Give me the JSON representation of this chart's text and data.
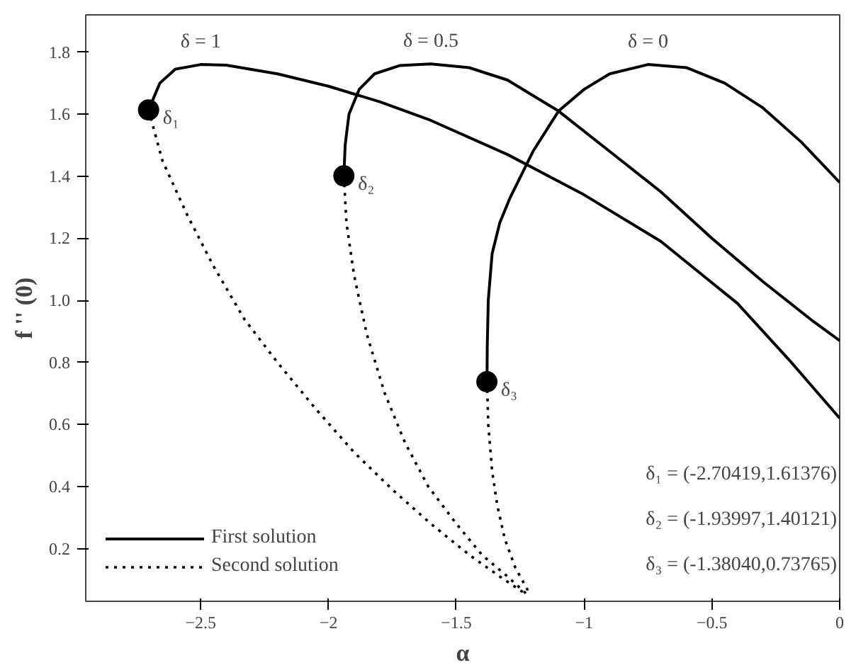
{
  "chart_data": {
    "type": "line",
    "xlabel": "α",
    "ylabel": "f '' (0)",
    "xlim": [
      -2.95,
      0
    ],
    "ylim": [
      0.03,
      1.92
    ],
    "xticks": [
      -2.5,
      -2,
      -1.5,
      -1,
      -0.5,
      0
    ],
    "yticks": [
      0.2,
      0.4,
      0.6,
      0.8,
      {
        "value": 1.0,
        "label": "1.0"
      },
      1.2,
      1.4,
      1.6,
      1.8
    ],
    "grid": false,
    "legend": "bottom left",
    "series": [
      {
        "name": "First solution",
        "color": "#000000",
        "line_style": "solid",
        "x": [
          -2.704,
          -2.66,
          -2.6,
          -2.5,
          -2.4,
          -2.2,
          -2.0,
          -1.8,
          -1.6,
          -1.3,
          -1.0,
          -0.7,
          -0.4,
          -0.2,
          0
        ],
        "values": [
          1.614,
          1.7,
          1.745,
          1.76,
          1.758,
          1.73,
          1.69,
          1.64,
          1.58,
          1.47,
          1.34,
          1.19,
          0.99,
          0.81,
          0.62
        ]
      },
      {
        "color": "#000000",
        "line_style": "solid",
        "x": [
          -1.94,
          -1.935,
          -1.92,
          -1.88,
          -1.82,
          -1.72,
          -1.6,
          -1.45,
          -1.3,
          -1.1,
          -0.9,
          -0.7,
          -0.5,
          -0.3,
          -0.1,
          0
        ],
        "values": [
          1.401,
          1.5,
          1.6,
          1.68,
          1.73,
          1.757,
          1.762,
          1.75,
          1.71,
          1.61,
          1.48,
          1.35,
          1.2,
          1.06,
          0.93,
          0.87
        ]
      },
      {
        "color": "#000000",
        "line_style": "solid",
        "x": [
          -1.38,
          -1.379,
          -1.375,
          -1.36,
          -1.33,
          -1.29,
          -1.2,
          -1.1,
          -1.0,
          -0.9,
          -0.75,
          -0.6,
          -0.45,
          -0.3,
          -0.15,
          0
        ],
        "values": [
          0.738,
          0.85,
          1.0,
          1.15,
          1.25,
          1.33,
          1.48,
          1.61,
          1.68,
          1.73,
          1.76,
          1.75,
          1.7,
          1.62,
          1.51,
          1.38
        ]
      },
      {
        "name": "Second solution",
        "color": "#000000",
        "line_style": "dotted",
        "x": [
          -2.704,
          -2.65,
          -2.55,
          -2.45,
          -2.33,
          -2.2,
          -2.05,
          -1.9,
          -1.75,
          -1.6,
          -1.45,
          -1.33,
          -1.24
        ],
        "values": [
          1.614,
          1.45,
          1.27,
          1.11,
          0.94,
          0.8,
          0.65,
          0.51,
          0.39,
          0.28,
          0.18,
          0.11,
          0.06
        ]
      },
      {
        "color": "#000000",
        "line_style": "dotted",
        "x": [
          -1.94,
          -1.93,
          -1.9,
          -1.85,
          -1.78,
          -1.7,
          -1.61,
          -1.5,
          -1.4,
          -1.3,
          -1.22
        ],
        "values": [
          1.401,
          1.25,
          1.08,
          0.89,
          0.7,
          0.54,
          0.4,
          0.28,
          0.18,
          0.11,
          0.05
        ]
      },
      {
        "color": "#000000",
        "line_style": "dotted",
        "x": [
          -1.38,
          -1.375,
          -1.36,
          -1.34,
          -1.31,
          -1.27,
          -1.23,
          -1.21
        ],
        "values": [
          0.738,
          0.6,
          0.45,
          0.34,
          0.23,
          0.14,
          0.08,
          0.05
        ]
      },
      {
        "type": "scatter",
        "marker": "circle",
        "color": "#000000",
        "x": [
          -2.70419,
          -1.93997,
          -1.3804
        ],
        "values": [
          1.61376,
          1.40121,
          0.73765
        ]
      }
    ],
    "annotations": [
      {
        "text": "δ = 1",
        "x": -2.5,
        "y": 1.76
      },
      {
        "text": "δ = 0.5",
        "x": -1.6,
        "y": 1.762
      },
      {
        "text": "δ = 0",
        "x": -0.75,
        "y": 1.76
      },
      {
        "text": "δ₁",
        "x": -2.704,
        "y": 1.614
      },
      {
        "text": "δ₂",
        "x": -1.93997,
        "y": 1.40121
      },
      {
        "text": "δ₃",
        "x": -1.3804,
        "y": 0.73765
      },
      "δ₁ = (-2.70419,1.61376)",
      "δ₂ = (-1.93997,1.40121)",
      "δ₃ = (-1.38040,0.73765)"
    ]
  }
}
